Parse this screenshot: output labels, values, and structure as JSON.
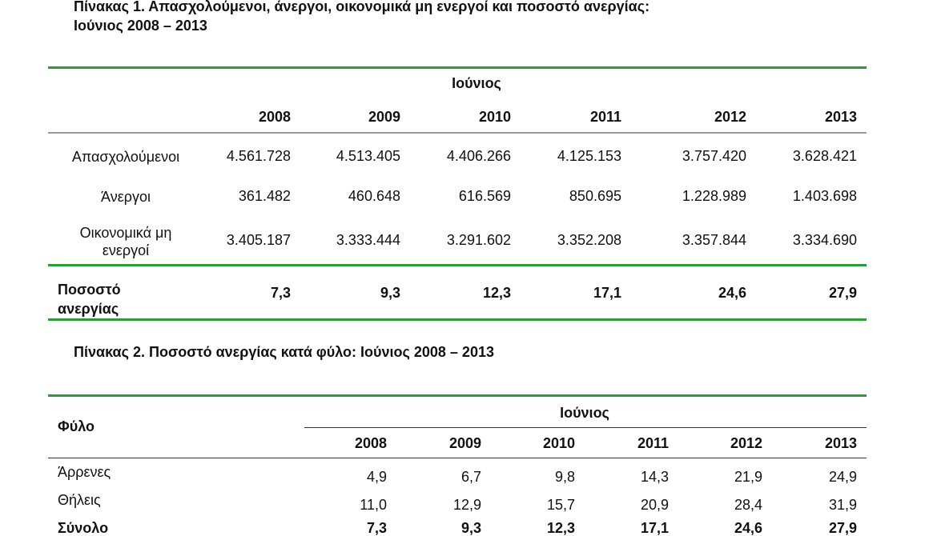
{
  "title": {
    "line1": "Πίνακας 1. Απασχολούμενοι, άνεργοι, οικονομικά μη ενεργοί και ποσοστό ανεργίας:",
    "line2": "Ιούνιος 2008 – 2013"
  },
  "table1": {
    "group_header": "Ιούνιος",
    "years": [
      "2008",
      "2009",
      "2010",
      "2011",
      "2012",
      "2013"
    ],
    "rows": [
      {
        "label": "Απασχολούμενοι",
        "values": [
          "4.561.728",
          "4.513.405",
          "4.406.266",
          "4.125.153",
          "3.757.420",
          "3.628.421"
        ]
      },
      {
        "label": "Άνεργοι",
        "values": [
          "361.482",
          "460.648",
          "616.569",
          "850.695",
          "1.228.989",
          "1.403.698"
        ]
      },
      {
        "label": "Οικονομικά μη ενεργοί",
        "values": [
          "3.405.187",
          "3.333.444",
          "3.291.602",
          "3.352.208",
          "3.357.844",
          "3.334.690"
        ]
      }
    ],
    "total": {
      "label": "Ποσοστό ανεργίας",
      "values": [
        "7,3",
        "9,3",
        "12,3",
        "17,1",
        "24,6",
        "27,9"
      ]
    }
  },
  "table2": {
    "title": "Πίνακας 2. Ποσοστό ανεργίας κατά φύλο: Ιούνιος 2008 – 2013",
    "row_header": "Φύλο",
    "group_header": "Ιούνιος",
    "years": [
      "2008",
      "2009",
      "2010",
      "2011",
      "2012",
      "2013"
    ],
    "rows": [
      {
        "label": "Άρρενες",
        "values": [
          "4,9",
          "6,7",
          "9,8",
          "14,3",
          "21,9",
          "24,9"
        ]
      },
      {
        "label": "Θήλεις",
        "values": [
          "11,0",
          "12,9",
          "15,7",
          "20,9",
          "28,4",
          "31,9"
        ]
      }
    ],
    "total": {
      "label": "Σύνολο",
      "values": [
        "7,3",
        "9,3",
        "12,3",
        "17,1",
        "24,6",
        "27,9"
      ]
    }
  }
}
